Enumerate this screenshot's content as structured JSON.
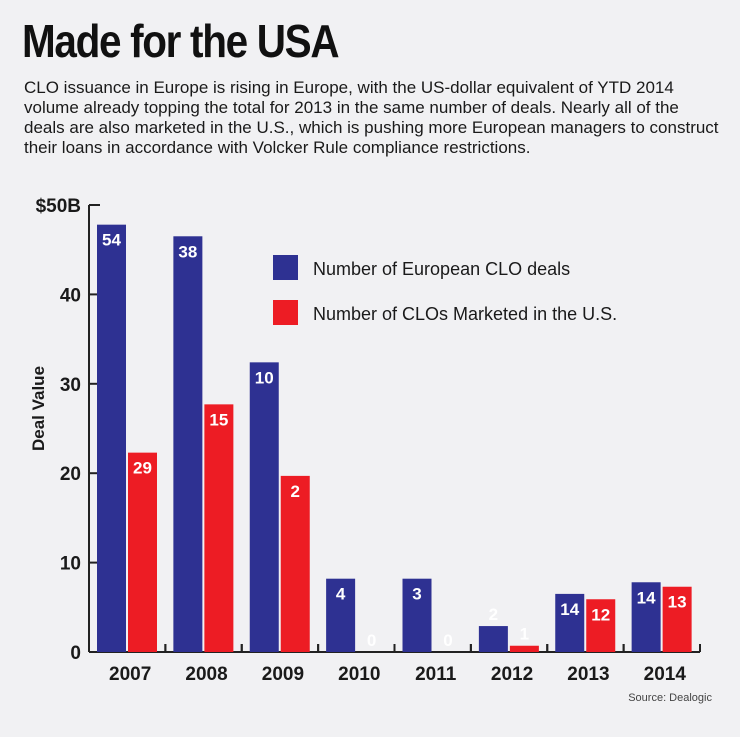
{
  "title": "Made for the USA",
  "subtitle": "CLO issuance in Europe is rising in Europe, with the US-dollar equivalent of YTD 2014 volume already topping the total for 2013 in the same number of deals. Nearly all  of the deals are also marketed in the U.S., which is pushing more European managers to construct their loans in accordance with Volcker Rule compliance restrictions.",
  "source": "Source: Dealogic",
  "chart_data": {
    "type": "bar",
    "title": "Made for the USA",
    "xlabel": "",
    "ylabel": "Deal Value",
    "ylim": [
      0,
      50
    ],
    "yticks": [
      "0",
      "10",
      "20",
      "30",
      "40",
      "$50B"
    ],
    "categories": [
      "2007",
      "2008",
      "2009",
      "2010",
      "2011",
      "2012",
      "2013",
      "2014"
    ],
    "legend_position": "top-right",
    "series": [
      {
        "name": "Number of European CLO deals",
        "color": "#2e3192",
        "values": [
          47.8,
          46.5,
          32.4,
          8.2,
          8.2,
          2.9,
          6.5,
          7.8
        ],
        "labels": [
          "54",
          "38",
          "10",
          "4",
          "3",
          "2",
          "14",
          "14"
        ]
      },
      {
        "name": "Number of CLOs Marketed in the U.S.",
        "color": "#ed1c24",
        "values": [
          22.3,
          27.7,
          19.7,
          0,
          0,
          0.7,
          5.9,
          7.3
        ],
        "labels": [
          "29",
          "15",
          "2",
          "0",
          "0",
          "1",
          "12",
          "13"
        ]
      }
    ]
  }
}
